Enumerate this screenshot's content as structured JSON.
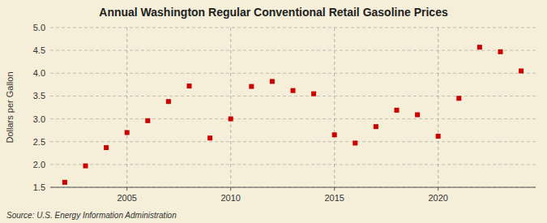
{
  "chart_data": {
    "type": "scatter",
    "title": "Annual Washington Regular Conventional Retail Gasoline Prices",
    "ylabel": "Dollars per Gallon",
    "annotations": [
      "Source: U.S. Energy Information Administration"
    ],
    "x": [
      2002,
      2003,
      2004,
      2005,
      2006,
      2007,
      2008,
      2009,
      2010,
      2011,
      2012,
      2013,
      2014,
      2015,
      2016,
      2017,
      2018,
      2019,
      2020,
      2021,
      2022,
      2023,
      2024
    ],
    "values": [
      1.61,
      1.97,
      2.37,
      2.7,
      2.96,
      3.38,
      3.72,
      2.58,
      3.0,
      3.71,
      3.82,
      3.62,
      3.55,
      2.65,
      2.47,
      2.83,
      3.19,
      3.09,
      2.62,
      3.45,
      4.57,
      4.47,
      4.05
    ],
    "color": "#cc0000",
    "marker": "square",
    "grid": true,
    "xlim": [
      2001.3,
      2024.7
    ],
    "xticks": [
      2005,
      2010,
      2015,
      2020
    ],
    "ylim": [
      1.5,
      5.0
    ],
    "yticks": [
      1.5,
      {
        "value": 2.0,
        "label": "2.0"
      },
      2.5,
      {
        "value": 3.0,
        "label": "3.0"
      },
      3.5,
      {
        "value": 4.0,
        "label": "4.0"
      },
      4.5,
      {
        "value": 5.0,
        "label": "5.0"
      }
    ]
  }
}
